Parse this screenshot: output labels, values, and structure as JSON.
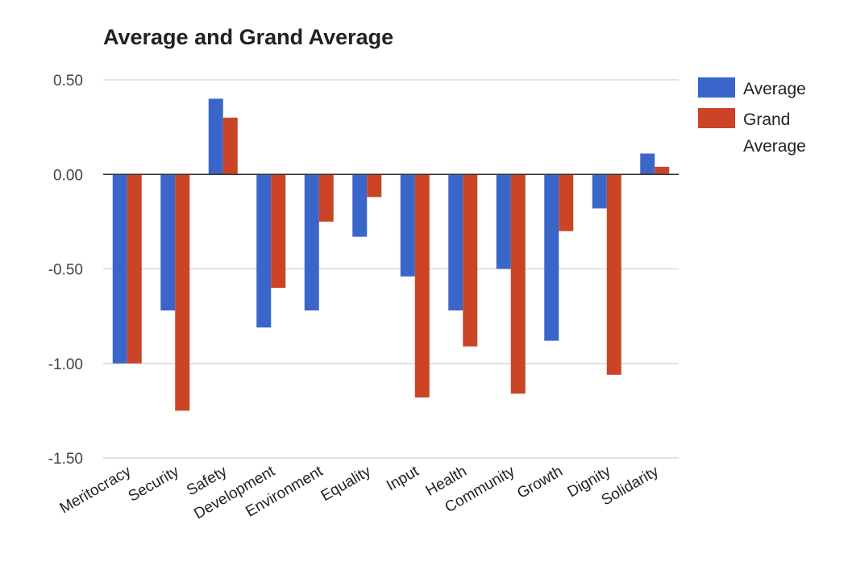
{
  "chart_data": {
    "type": "bar",
    "title": "Average and Grand Average",
    "categories": [
      "Meritocracy",
      "Security",
      "Safety",
      "Development",
      "Environment",
      "Equality",
      "Input",
      "Health",
      "Community",
      "Growth",
      "Dignity",
      "Solidarity"
    ],
    "series": [
      {
        "name": "Average",
        "color": "#3b66c9",
        "values": [
          -1.0,
          -0.72,
          0.4,
          -0.81,
          -0.72,
          -0.33,
          -0.54,
          -0.72,
          -0.5,
          -0.88,
          -0.18,
          0.11
        ]
      },
      {
        "name": "Grand Average",
        "color": "#cc4426",
        "values": [
          -1.0,
          -1.25,
          0.3,
          -0.6,
          -0.25,
          -0.12,
          -1.18,
          -0.91,
          -1.16,
          -0.3,
          -1.06,
          0.04
        ]
      }
    ],
    "yticks": [
      "0.50",
      "0.00",
      "-0.50",
      "-1.00",
      "-1.50"
    ],
    "ylim": [
      -1.5,
      0.5
    ],
    "grid": true,
    "legend_position": "right"
  }
}
